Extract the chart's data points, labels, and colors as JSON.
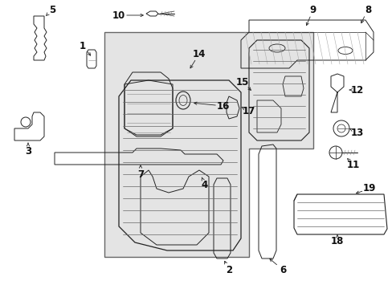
{
  "background_color": "#ffffff",
  "line_color": "#222222",
  "text_color": "#111111",
  "label_fontsize": 8.5,
  "figsize": [
    4.89,
    3.6
  ],
  "dpi": 100,
  "shade_color": "#e4e4e4",
  "shade_edge": "#666666"
}
